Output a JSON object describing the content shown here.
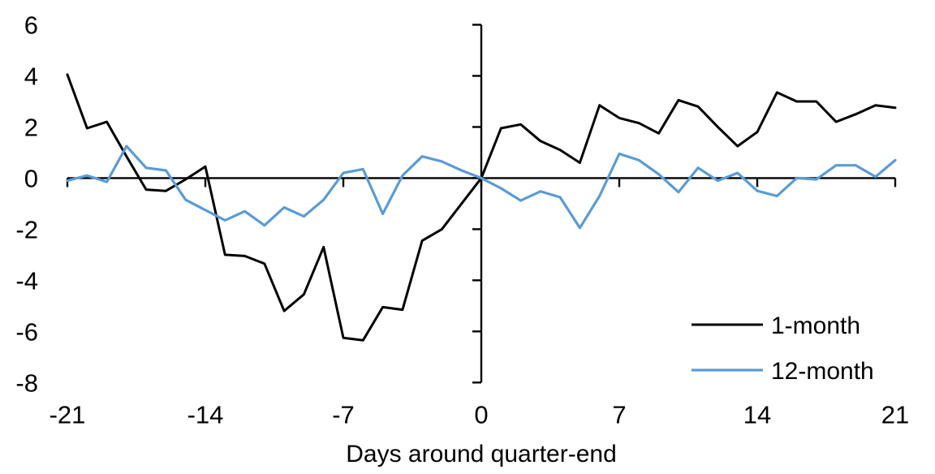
{
  "chart_data": {
    "type": "line",
    "title": "",
    "xlabel": "Days around quarter-end",
    "ylabel": "",
    "xlim": [
      -21,
      21
    ],
    "ylim": [
      -8,
      6
    ],
    "x_ticks": [
      -21,
      -14,
      -7,
      0,
      7,
      14,
      21
    ],
    "y_ticks": [
      6,
      4,
      2,
      0,
      -2,
      -4,
      -6,
      -8
    ],
    "grid": false,
    "legend_position": "lower right",
    "axes_color": "#000000",
    "x": [
      -21,
      -20,
      -19,
      -18,
      -17,
      -16,
      -15,
      -14,
      -13,
      -12,
      -11,
      -10,
      -9,
      -8,
      -7,
      -6,
      -5,
      -4,
      -3,
      -2,
      -1,
      0,
      1,
      2,
      3,
      4,
      5,
      6,
      7,
      8,
      9,
      10,
      11,
      12,
      13,
      14,
      15,
      16,
      17,
      18,
      19,
      20,
      21
    ],
    "series": [
      {
        "name": "1-month",
        "color": "#000000",
        "values": [
          4.05,
          1.95,
          2.2,
          0.85,
          -0.45,
          -0.5,
          -0.05,
          0.45,
          -3.0,
          -3.05,
          -3.35,
          -5.2,
          -4.55,
          -2.7,
          -6.25,
          -6.35,
          -5.05,
          -5.15,
          -2.45,
          -2.0,
          -1.0,
          0,
          1.95,
          2.1,
          1.45,
          1.1,
          0.6,
          2.85,
          2.35,
          2.15,
          1.75,
          3.05,
          2.8,
          2.0,
          1.25,
          1.8,
          3.35,
          3.0,
          3.0,
          2.2,
          2.5,
          2.85,
          2.75
        ]
      },
      {
        "name": "12-month",
        "color": "#5B9BD5",
        "values": [
          -0.1,
          0.1,
          -0.15,
          1.25,
          0.4,
          0.3,
          -0.85,
          -1.25,
          -1.65,
          -1.3,
          -1.85,
          -1.15,
          -1.5,
          -0.85,
          0.2,
          0.35,
          -1.4,
          0.1,
          0.85,
          0.65,
          0.3,
          0,
          -0.4,
          -0.88,
          -0.52,
          -0.75,
          -1.95,
          -0.7,
          0.95,
          0.7,
          0.15,
          -0.55,
          0.4,
          -0.1,
          0.2,
          -0.5,
          -0.7,
          0.0,
          -0.05,
          0.5,
          0.5,
          0.05,
          0.7
        ]
      }
    ]
  }
}
